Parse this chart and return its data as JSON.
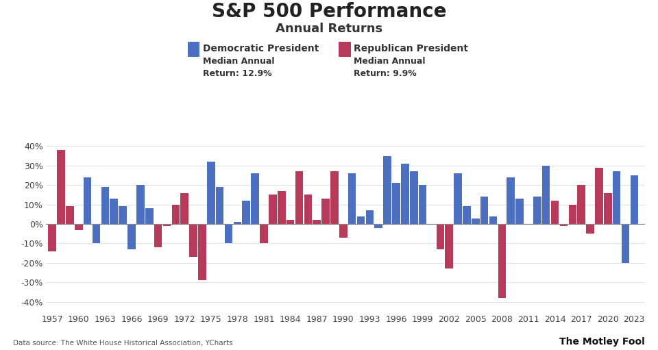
{
  "title": "S&P 500 Performance",
  "subtitle": "Annual Returns",
  "legend_dem_label": "Democratic President",
  "legend_rep_label": "Republican President",
  "dem_color": "#4C6FBF",
  "rep_color": "#B83A5A",
  "source": "Data source: The White House Historical Association, YCharts",
  "years": [
    1957,
    1958,
    1959,
    1960,
    1961,
    1962,
    1963,
    1964,
    1965,
    1966,
    1967,
    1968,
    1969,
    1970,
    1971,
    1972,
    1973,
    1974,
    1975,
    1976,
    1977,
    1978,
    1979,
    1980,
    1981,
    1982,
    1983,
    1984,
    1985,
    1986,
    1987,
    1988,
    1989,
    1990,
    1991,
    1992,
    1993,
    1994,
    1995,
    1996,
    1997,
    1998,
    1999,
    2000,
    2001,
    2002,
    2003,
    2004,
    2005,
    2006,
    2007,
    2008,
    2009,
    2010,
    2011,
    2012,
    2013,
    2014,
    2015,
    2016,
    2017,
    2018,
    2019,
    2020,
    2021,
    2022,
    2023
  ],
  "returns": [
    -14,
    38,
    9,
    -3,
    24,
    -10,
    19,
    13,
    9,
    -13,
    20,
    8,
    -12,
    -1,
    10,
    16,
    -17,
    -29,
    32,
    19,
    -10,
    1,
    12,
    26,
    -10,
    15,
    17,
    2,
    27,
    15,
    2,
    13,
    27,
    -7,
    26,
    4,
    7,
    -2,
    35,
    21,
    31,
    27,
    20,
    0,
    -13,
    -23,
    26,
    9,
    3,
    14,
    4,
    -38,
    24,
    13,
    0,
    14,
    30,
    12,
    -1,
    10,
    20,
    -5,
    29,
    16,
    27,
    -20,
    25
  ],
  "party": [
    "R",
    "R",
    "R",
    "R",
    "D",
    "D",
    "D",
    "D",
    "D",
    "D",
    "D",
    "D",
    "R",
    "R",
    "R",
    "R",
    "R",
    "R",
    "D",
    "D",
    "D",
    "D",
    "D",
    "D",
    "R",
    "R",
    "R",
    "R",
    "R",
    "R",
    "R",
    "R",
    "R",
    "R",
    "D",
    "D",
    "D",
    "D",
    "D",
    "D",
    "D",
    "D",
    "D",
    "R",
    "R",
    "R",
    "D",
    "D",
    "D",
    "D",
    "D",
    "R",
    "D",
    "D",
    "D",
    "D",
    "D",
    "R",
    "R",
    "R",
    "R",
    "R",
    "R",
    "R",
    "D",
    "D",
    "D"
  ],
  "ylim": [
    -45,
    45
  ],
  "yticks": [
    -40,
    -30,
    -20,
    -10,
    0,
    10,
    20,
    30,
    40
  ],
  "xtick_years": [
    1957,
    1960,
    1963,
    1966,
    1969,
    1972,
    1975,
    1978,
    1981,
    1984,
    1987,
    1990,
    1993,
    1996,
    1999,
    2002,
    2005,
    2008,
    2011,
    2014,
    2017,
    2020,
    2023
  ],
  "background_color": "#FFFFFF"
}
